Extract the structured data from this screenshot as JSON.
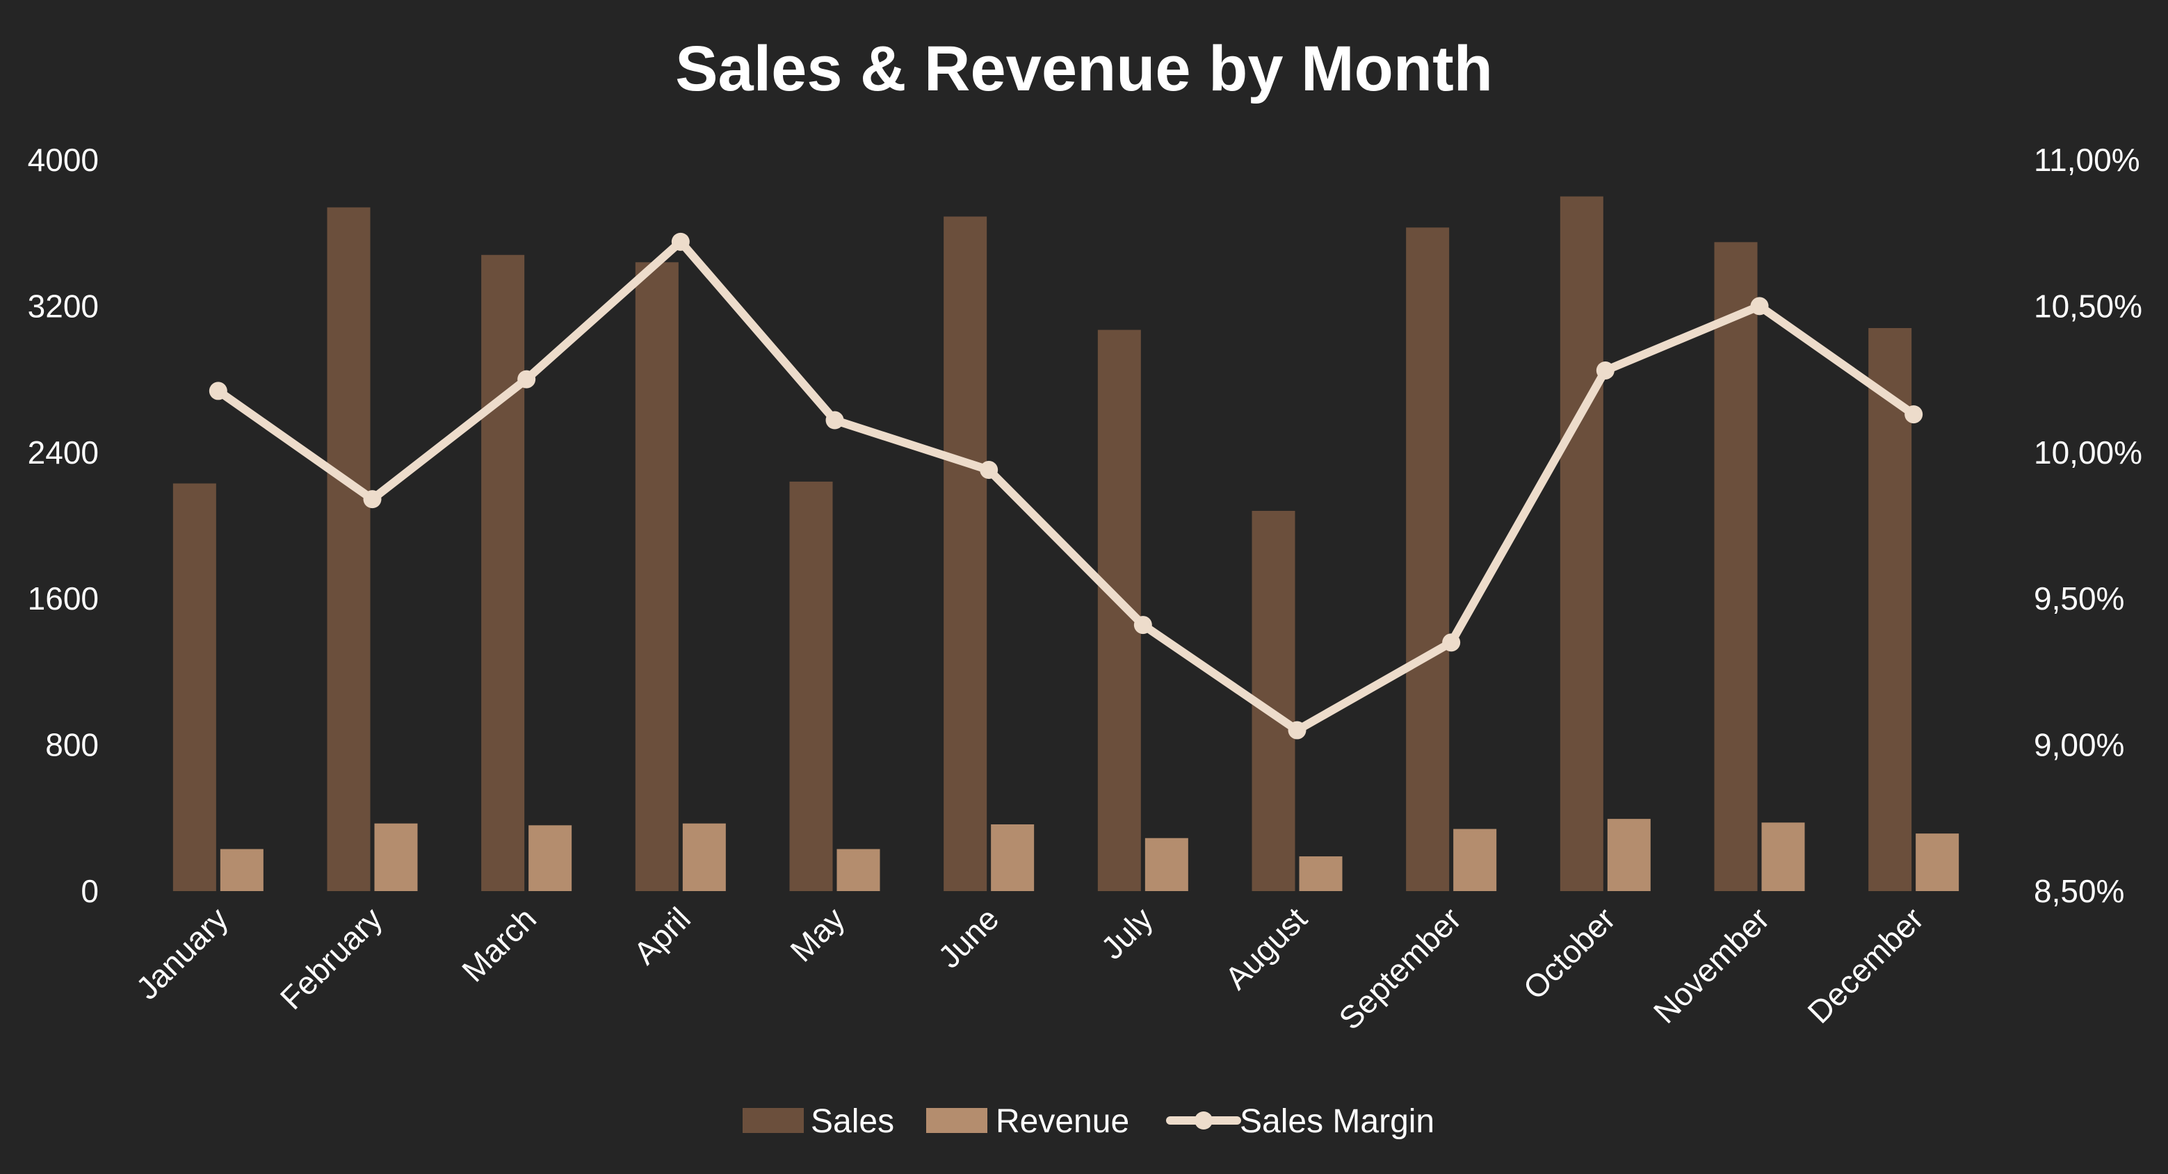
{
  "chart_data": {
    "type": "bar",
    "title": "Sales & Revenue by Month",
    "categories": [
      "January",
      "February",
      "March",
      "April",
      "May",
      "June",
      "July",
      "August",
      "September",
      "October",
      "November",
      "December"
    ],
    "series": [
      {
        "name": "Sales",
        "type": "bar",
        "axis": "left",
        "color": "#6b4f3c",
        "values": [
          2230,
          3740,
          3480,
          3440,
          2240,
          3690,
          3070,
          2080,
          3630,
          3800,
          3550,
          3080
        ]
      },
      {
        "name": "Revenue",
        "type": "bar",
        "axis": "left",
        "color": "#b48d6e",
        "values": [
          230,
          370,
          360,
          370,
          230,
          365,
          290,
          190,
          340,
          395,
          375,
          315
        ]
      },
      {
        "name": "Sales Margin",
        "type": "line",
        "axis": "right",
        "color": "#eddccb",
        "values": [
          0.1021,
          0.0984,
          0.1025,
          0.1072,
          0.1011,
          0.0994,
          0.0941,
          0.0905,
          0.0935,
          0.1028,
          0.105,
          0.1013
        ]
      }
    ],
    "y_left": {
      "min": 0,
      "max": 4000,
      "ticks": [
        "0",
        "800",
        "1600",
        "2400",
        "3200",
        "4000"
      ]
    },
    "y_right": {
      "min": 0.085,
      "max": 0.11,
      "ticks": [
        "8,50%",
        "9,00%",
        "9,50%",
        "10,00%",
        "10,50%",
        "11,00%"
      ]
    },
    "grid": false,
    "legend_position": "bottom",
    "background": "#252525"
  }
}
